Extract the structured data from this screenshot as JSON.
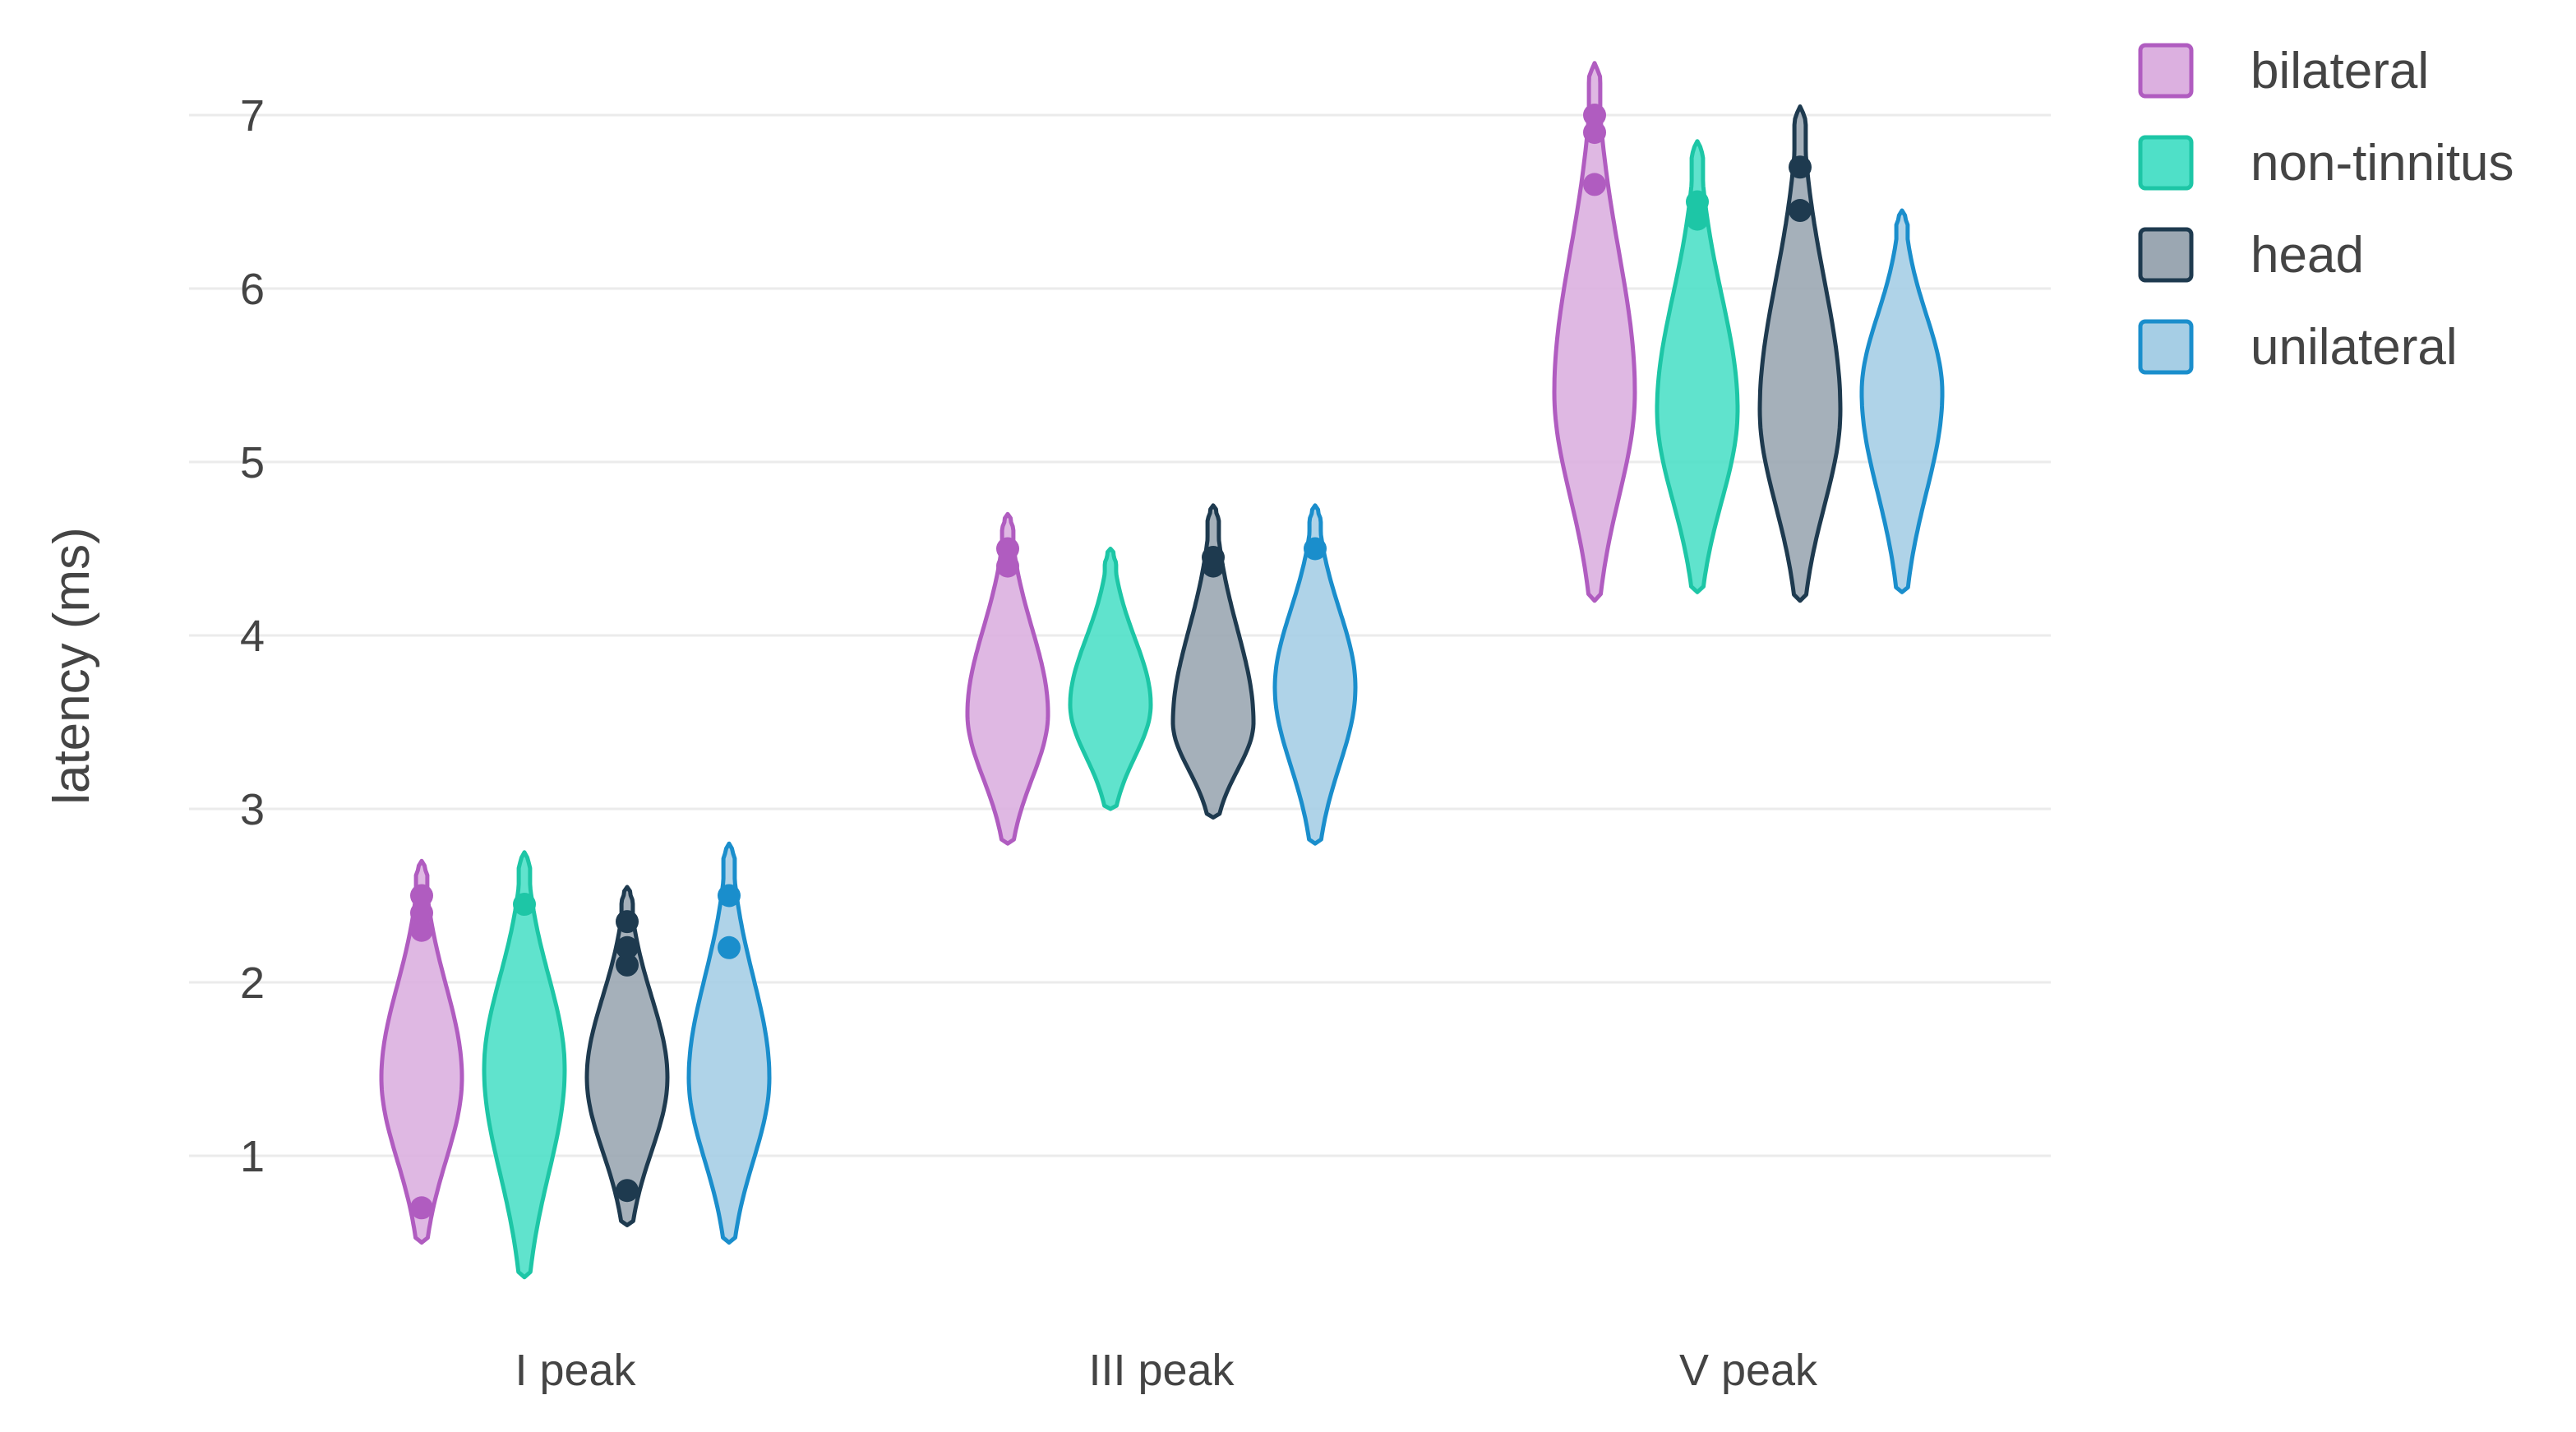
{
  "chart_data": {
    "type": "violin",
    "title": "",
    "xlabel": "",
    "ylabel": "latency (ms)",
    "ylim": [
      0.3,
      7.5
    ],
    "yticks": [
      1,
      2,
      3,
      4,
      5,
      6,
      7
    ],
    "grid": true,
    "legend_position": "top-right",
    "categories": [
      "I peak",
      "III peak",
      "V peak"
    ],
    "series": [
      {
        "name": "bilateral",
        "color": "#b05cc0",
        "fill": "#dcb0e0",
        "violins": [
          {
            "category": "I peak",
            "min": 0.5,
            "max": 2.7,
            "mode": 1.45,
            "outliers": [
              0.7,
              2.3,
              2.4,
              2.5
            ]
          },
          {
            "category": "III peak",
            "min": 2.8,
            "max": 4.7,
            "mode": 3.55,
            "outliers": [
              4.4,
              4.5
            ]
          },
          {
            "category": "V peak",
            "min": 4.2,
            "max": 7.3,
            "mode": 5.4,
            "outliers": [
              6.6,
              6.9,
              7.0
            ]
          }
        ]
      },
      {
        "name": "non-tinnitus",
        "color": "#1dc6a6",
        "fill": "#4fe0c8",
        "violins": [
          {
            "category": "I peak",
            "min": 0.3,
            "max": 2.75,
            "mode": 1.5,
            "outliers": [
              2.45
            ]
          },
          {
            "category": "III peak",
            "min": 3.0,
            "max": 4.5,
            "mode": 3.6,
            "outliers": []
          },
          {
            "category": "V peak",
            "min": 4.25,
            "max": 6.85,
            "mode": 5.3,
            "outliers": [
              6.4,
              6.5
            ]
          }
        ]
      },
      {
        "name": "head",
        "color": "#1e3a4f",
        "fill": "#9ba7b2",
        "violins": [
          {
            "category": "I peak",
            "min": 0.6,
            "max": 2.55,
            "mode": 1.45,
            "outliers": [
              0.8,
              2.1,
              2.2,
              2.35
            ]
          },
          {
            "category": "III peak",
            "min": 2.95,
            "max": 4.75,
            "mode": 3.5,
            "outliers": [
              4.4,
              4.45
            ]
          },
          {
            "category": "V peak",
            "min": 4.2,
            "max": 7.05,
            "mode": 5.3,
            "outliers": [
              6.45,
              6.7
            ]
          }
        ]
      },
      {
        "name": "unilateral",
        "color": "#1a8ecc",
        "fill": "#a6cee5",
        "violins": [
          {
            "category": "I peak",
            "min": 0.5,
            "max": 2.8,
            "mode": 1.45,
            "outliers": [
              2.2,
              2.5
            ]
          },
          {
            "category": "III peak",
            "min": 2.8,
            "max": 4.75,
            "mode": 3.7,
            "outliers": [
              4.5
            ]
          },
          {
            "category": "V peak",
            "min": 4.25,
            "max": 6.45,
            "mode": 5.4,
            "outliers": []
          }
        ]
      }
    ]
  }
}
